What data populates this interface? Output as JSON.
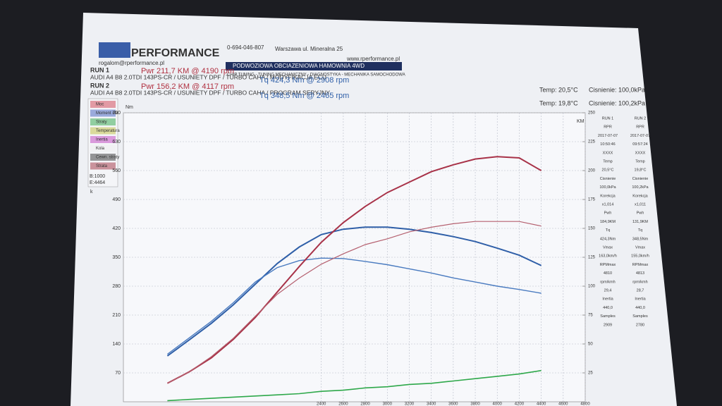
{
  "header": {
    "brand": "PERFORMANCE",
    "email": "rogalom@rperformance.pl",
    "phone": "0-694-046-807",
    "address": "Warszawa ul. Mineralna 25",
    "web": "www.rperformance.pl",
    "banner": "PODWOZIOWA OBCIAZENIOWA HAMOWNIA 4WD",
    "services": "CHIP TUNING - TUNING MECHANICZNY - DIAGNOSTYKA - MECHANIKA SAMOCHODOWA"
  },
  "runs": [
    {
      "label": "RUN 1",
      "car": "AUDI A4 B8 2.0TDI 143PS-CR / USUNIETY DPF / TURBO CAHA / MODYFIKACJA ECU",
      "pwr": "Pwr 211,7 KM @ 4190 rpm",
      "tq": "Tq 424,3 Nm @ 2908 rpm",
      "temp": "Temp: 20,5°C",
      "pressure": "Cisnienie: 100,0kPa"
    },
    {
      "label": "RUN 2",
      "car": "AUDI A4 B8 2.0TDI 143PS-CR / USUNIETY DPF / TURBO CAHA / PROGRAM SERYJNY",
      "pwr": "Pwr 156,2 KM @ 4117 rpm",
      "tq": "Tq 348,5 Nm @ 2465 rpm",
      "temp": "Temp: 19,8°C",
      "pressure": "Cisnienie: 100,2kPa"
    }
  ],
  "panel": {
    "items": [
      "Moc",
      "Moment obr.",
      "Straty",
      "Temperatura",
      "Inertia",
      "Kola",
      "Cewn. straty",
      "Strata"
    ],
    "begin": "B:1000",
    "end": "E:4464",
    "key": "k"
  },
  "side_table": {
    "rows": [
      [
        "RUN 1",
        "RUN 2"
      ],
      [
        "RPR",
        "RPR"
      ],
      [
        "2017-07-07",
        "2017-07-07"
      ],
      [
        "10:50:46",
        "09:57:24"
      ],
      [
        "XXXX",
        "XXXX"
      ],
      [
        "Temp",
        "Temp"
      ],
      [
        "20,5°C",
        "19,8°C"
      ],
      [
        "Cisnienie",
        "Cisnienie"
      ],
      [
        "100,0kPa",
        "100,2kPa"
      ],
      [
        "Korekcja",
        "Korekcja"
      ],
      [
        "x1,014",
        "x1,011"
      ],
      [
        "Pwh",
        "Pwh"
      ],
      [
        "184,9KM",
        "131,9KM"
      ],
      [
        "Tq",
        "Tq"
      ],
      [
        "424,3Nm",
        "348,5Nm"
      ],
      [
        "Vmax",
        "Vmax"
      ],
      [
        "163,0km/h",
        "155,0km/h"
      ],
      [
        "RPMmax",
        "RPMmax"
      ],
      [
        "4810",
        "4813"
      ],
      [
        "rpm/kmh",
        "rpm/kmh"
      ],
      [
        "29,4",
        "28,7"
      ],
      [
        "Inertia",
        "Inertia"
      ],
      [
        "440,0",
        "440,0"
      ],
      [
        "Samples",
        "Samples"
      ],
      [
        "2909",
        "2780"
      ]
    ]
  },
  "chart_data": {
    "type": "line",
    "y_label": "Nm",
    "y2_label": "KM",
    "x": [
      1000,
      1200,
      1400,
      1600,
      1800,
      2000,
      2200,
      2400,
      2600,
      2800,
      3000,
      3200,
      3400,
      3600,
      3800,
      4000,
      4200,
      4400
    ],
    "xlim": [
      600,
      4800
    ],
    "xticks": [
      2400,
      2600,
      2800,
      3000,
      3200,
      3400,
      3600,
      3800,
      4000,
      4200,
      4400,
      4600,
      4800
    ],
    "ylim": [
      0,
      700
    ],
    "yticks": [
      70,
      140,
      210,
      280,
      350,
      420,
      490,
      560,
      630,
      700
    ],
    "y2lim": [
      0,
      250
    ],
    "y2ticks": [
      25,
      50,
      75,
      100,
      125,
      150,
      175,
      200,
      225,
      250
    ],
    "grid": true,
    "series": [
      {
        "color": "#2f5fa8",
        "width": 2,
        "values": [
          111,
          150,
          190,
          235,
          285,
          335,
          375,
          405,
          418,
          423,
          423,
          418,
          410,
          400,
          388,
          372,
          355,
          330
        ]
      },
      {
        "color": "#4a7bc0",
        "width": 1.4,
        "values": [
          115,
          155,
          195,
          240,
          290,
          325,
          342,
          348,
          347,
          340,
          332,
          322,
          312,
          300,
          290,
          280,
          272,
          263
        ]
      },
      {
        "color": "#a83248",
        "width": 2,
        "axis": "y2",
        "values": [
          16,
          26,
          38,
          54,
          73,
          95,
          117,
          138,
          155,
          169,
          181,
          190,
          199,
          205,
          210,
          212,
          211,
          200
        ]
      },
      {
        "color": "#b5606f",
        "width": 1.2,
        "axis": "y2",
        "values": [
          16,
          26,
          39,
          55,
          74,
          93,
          107,
          119,
          128,
          136,
          141,
          147,
          151,
          154,
          156,
          156,
          156,
          152
        ]
      },
      {
        "color": "#2ea84a",
        "width": 1.6,
        "axis": "y2",
        "values": [
          1,
          2,
          3,
          4,
          5,
          6,
          7,
          9,
          10,
          12,
          13,
          15,
          16,
          18,
          20,
          22,
          24,
          27
        ]
      }
    ]
  }
}
